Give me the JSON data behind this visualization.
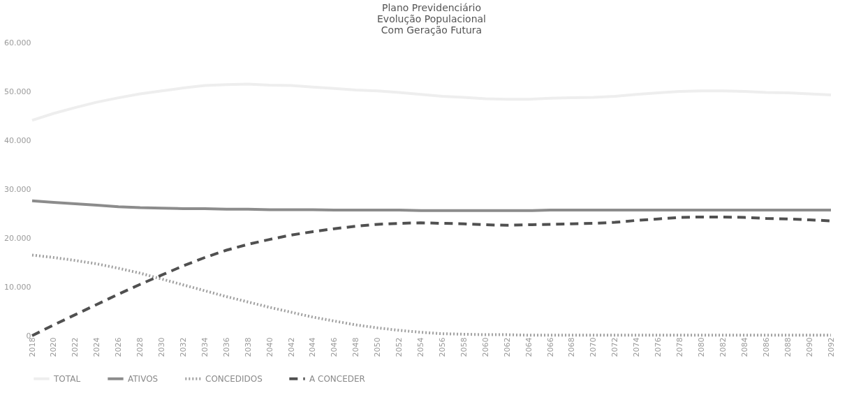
{
  "chart_data": {
    "type": "line",
    "title": [
      "Plano Previdenciário",
      "Evolução Populacional",
      "Com Geração Futura"
    ],
    "x": [
      2018,
      2020,
      2022,
      2024,
      2026,
      2028,
      2030,
      2032,
      2034,
      2036,
      2038,
      2040,
      2042,
      2044,
      2046,
      2048,
      2050,
      2052,
      2054,
      2056,
      2058,
      2060,
      2062,
      2064,
      2066,
      2068,
      2070,
      2072,
      2074,
      2076,
      2078,
      2080,
      2082,
      2084,
      2086,
      2088,
      2090,
      2092
    ],
    "series": [
      {
        "name": "TOTAL",
        "color": "#eeeeee",
        "line_style": "solid",
        "values": [
          44100,
          45500,
          46700,
          47800,
          48700,
          49500,
          50100,
          50700,
          51200,
          51400,
          51500,
          51300,
          51200,
          50900,
          50600,
          50300,
          50100,
          49800,
          49400,
          49000,
          48800,
          48500,
          48400,
          48400,
          48600,
          48700,
          48800,
          49000,
          49400,
          49700,
          50000,
          50100,
          50100,
          50000,
          49800,
          49700,
          49500,
          49300
        ]
      },
      {
        "name": "ATIVOS",
        "color": "#8c8c8c",
        "line_style": "solid",
        "values": [
          27600,
          27300,
          27000,
          26700,
          26400,
          26200,
          26100,
          26000,
          26000,
          25900,
          25900,
          25800,
          25800,
          25800,
          25700,
          25700,
          25700,
          25700,
          25600,
          25600,
          25600,
          25600,
          25600,
          25600,
          25700,
          25700,
          25700,
          25700,
          25700,
          25700,
          25700,
          25700,
          25700,
          25700,
          25700,
          25700,
          25700,
          25700
        ]
      },
      {
        "name": "CONCEDIDOS",
        "color": "#a0a0a0",
        "line_style": "dotted",
        "values": [
          16500,
          16000,
          15400,
          14700,
          13800,
          12800,
          11600,
          10400,
          9200,
          8000,
          6900,
          5800,
          4800,
          3800,
          3000,
          2200,
          1600,
          1100,
          700,
          400,
          300,
          200,
          200,
          100,
          100,
          100,
          100,
          100,
          100,
          100,
          100,
          100,
          100,
          100,
          100,
          100,
          100,
          100
        ]
      },
      {
        "name": "A CONCEDER",
        "color": "#505050",
        "line_style": "dashed",
        "values": [
          0,
          2200,
          4300,
          6400,
          8500,
          10500,
          12400,
          14300,
          16000,
          17500,
          18700,
          19700,
          20600,
          21300,
          21900,
          22400,
          22800,
          23000,
          23100,
          23000,
          22900,
          22700,
          22600,
          22700,
          22800,
          22900,
          23000,
          23200,
          23600,
          23900,
          24200,
          24300,
          24300,
          24200,
          24000,
          23900,
          23700,
          23500
        ]
      }
    ],
    "xlim": [
      2018,
      2092
    ],
    "xticks": [
      2018,
      2020,
      2022,
      2024,
      2026,
      2028,
      2030,
      2032,
      2034,
      2036,
      2038,
      2040,
      2042,
      2044,
      2046,
      2048,
      2050,
      2052,
      2054,
      2056,
      2058,
      2060,
      2062,
      2064,
      2066,
      2068,
      2070,
      2072,
      2074,
      2076,
      2078,
      2080,
      2082,
      2084,
      2086,
      2088,
      2090,
      2092
    ],
    "ylim": [
      0,
      60000
    ],
    "yticks": [
      0,
      {
        "value": 10000,
        "label": "10.000"
      },
      {
        "value": 20000,
        "label": "20.000"
      },
      {
        "value": 30000,
        "label": "30.000"
      },
      {
        "value": 40000,
        "label": "40.000"
      },
      {
        "value": 50000,
        "label": "50.000"
      },
      {
        "value": 60000,
        "label": "60.000"
      }
    ],
    "grid": false,
    "legend": "bottom",
    "marker": "none"
  }
}
